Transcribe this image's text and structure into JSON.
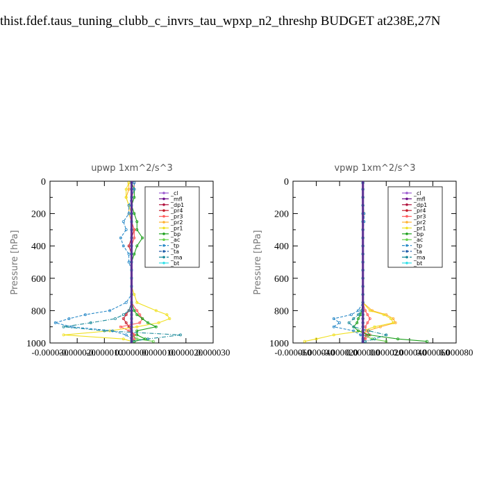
{
  "title": "thist.fdef.taus_tuning_clubb_c_invrs_tau_wpxp_n2_threshp  BUDGET at238E,27N",
  "series_meta": [
    {
      "name": "_cl",
      "color": "#9b59d0",
      "dash": ""
    },
    {
      "name": "_mfl",
      "color": "#6a0d8a",
      "dash": ""
    },
    {
      "name": "_dp1",
      "color": "#b0103c",
      "dash": ""
    },
    {
      "name": "_pr4",
      "color": "#c41f2e",
      "dash": ""
    },
    {
      "name": "_pr3",
      "color": "#ff5a5a",
      "dash": ""
    },
    {
      "name": "_pr2",
      "color": "#ffb030",
      "dash": ""
    },
    {
      "name": "_pr1",
      "color": "#f0e020",
      "dash": ""
    },
    {
      "name": "_bp",
      "color": "#1ca01c",
      "dash": ""
    },
    {
      "name": "_ac",
      "color": "#66d04a",
      "dash": ""
    },
    {
      "name": "_tp",
      "color": "#2a8ac8",
      "dash": "4,2"
    },
    {
      "name": "_ta",
      "color": "#1e5aa8",
      "dash": "4,2"
    },
    {
      "name": "_ma",
      "color": "#1a8a9a",
      "dash": "6,2,1,2"
    },
    {
      "name": "_bt",
      "color": "#30e0e8",
      "dash": ""
    }
  ],
  "chart_data": [
    {
      "type": "line",
      "title": "upwp   1xm^2/s^3",
      "ylabel": "Pressure [hPa]",
      "xlim": [
        -3e-05,
        3e-05
      ],
      "ylim": [
        1000,
        0
      ],
      "yticks": [
        0,
        200,
        400,
        600,
        800,
        1000
      ],
      "xticks": [
        -3e-05,
        -2e-05,
        -1e-05,
        0,
        1e-05,
        2e-05,
        3e-05
      ],
      "xtick_labels": [
        "-0.000030",
        "-0.000020",
        "-0.000010",
        "0.000000",
        "0.000010",
        "0.000020",
        "0.000030"
      ],
      "legend_position": "top-right",
      "y": [
        10,
        50,
        100,
        150,
        200,
        250,
        300,
        350,
        400,
        450,
        500,
        550,
        600,
        650,
        700,
        750,
        800,
        825,
        850,
        875,
        900,
        925,
        950,
        975,
        990
      ],
      "series": [
        {
          "name": "_cl",
          "values": [
            0,
            0,
            0,
            0,
            0,
            0,
            0,
            0,
            0,
            0,
            0,
            0,
            0,
            0,
            0,
            0,
            0,
            0,
            0,
            0,
            0,
            0,
            0,
            0,
            0
          ]
        },
        {
          "name": "_mfl",
          "values": [
            0,
            0,
            0,
            0,
            0,
            0,
            0,
            0,
            0,
            0,
            0,
            0,
            0,
            0,
            0,
            0,
            0,
            0,
            0,
            0,
            0,
            0,
            0,
            0,
            0
          ]
        },
        {
          "name": "_dp1",
          "values": [
            0,
            0,
            0,
            0,
            0,
            0,
            0,
            0,
            0,
            0,
            0,
            0,
            0,
            0,
            0,
            0,
            0,
            0,
            0,
            0,
            0,
            0,
            0,
            0,
            0
          ]
        },
        {
          "name": "_pr4",
          "values": [
            0,
            0,
            0,
            0,
            0,
            0,
            1e-06,
            0,
            -1e-06,
            0,
            0,
            0,
            0,
            0,
            0,
            0,
            -1e-06,
            -2e-06,
            -3e-06,
            -2e-06,
            -1e-06,
            0,
            1e-06,
            0,
            0
          ]
        },
        {
          "name": "_pr3",
          "values": [
            1e-06,
            1e-06,
            0,
            0,
            0,
            0,
            1e-06,
            1e-06,
            0,
            0,
            0,
            0,
            0,
            0,
            0,
            0,
            2e-06,
            3e-06,
            4e-06,
            3e-06,
            -4e-06,
            -1e-06,
            1e-06,
            1e-06,
            0
          ]
        },
        {
          "name": "_pr2",
          "values": [
            -1e-06,
            -1e-06,
            -2e-06,
            -1e-06,
            -1e-06,
            0,
            0,
            0,
            0,
            0,
            0,
            0,
            0,
            0,
            0,
            0,
            0,
            0,
            0,
            0,
            0,
            0,
            0,
            0,
            0
          ]
        },
        {
          "name": "_pr1",
          "values": [
            -1e-06,
            -2e-06,
            -2e-06,
            -1e-06,
            0,
            0,
            0,
            0,
            0,
            0,
            0,
            0,
            0,
            0,
            1e-06,
            2e-06,
            9e-06,
            1.3e-05,
            1.4e-05,
            1e-05,
            2e-06,
            -8e-06,
            -2.5e-05,
            -3e-06,
            0
          ]
        },
        {
          "name": "_bp",
          "values": [
            0,
            1e-06,
            1e-06,
            0,
            1e-06,
            2e-06,
            2e-06,
            4e-06,
            2e-06,
            1e-06,
            0,
            0,
            0,
            0,
            0,
            0,
            1e-06,
            2e-06,
            4e-06,
            6e-06,
            9e-06,
            2e-06,
            2e-06,
            5e-06,
            1e-06
          ]
        },
        {
          "name": "_ac",
          "values": [
            0,
            0,
            0,
            0,
            0,
            0,
            0,
            0,
            0,
            0,
            0,
            0,
            0,
            0,
            0,
            0,
            0,
            0,
            0,
            0,
            0,
            0,
            0,
            2e-06,
            8e-06
          ]
        },
        {
          "name": "_tp",
          "values": [
            1e-06,
            1e-06,
            0,
            -1e-06,
            -1e-06,
            -3e-06,
            -2e-06,
            -4e-06,
            -3e-06,
            -1e-06,
            -1e-06,
            0,
            0,
            0,
            0,
            -2e-06,
            -8e-06,
            -1.7e-05,
            -2.3e-05,
            -2.8e-05,
            -2.2e-05,
            -7e-06,
            -2e-06,
            0,
            0
          ]
        },
        {
          "name": "_ta",
          "values": [
            0,
            0,
            0,
            0,
            0,
            0,
            0,
            0,
            0,
            0,
            0,
            0,
            0,
            0,
            0,
            0,
            0,
            0,
            0,
            0,
            0,
            0,
            0,
            0,
            0
          ]
        },
        {
          "name": "_ma",
          "values": [
            0,
            0,
            0,
            0,
            0,
            0,
            0,
            0,
            0,
            0,
            0,
            0,
            0,
            0,
            0,
            0,
            -1e-06,
            -3e-06,
            -6e-06,
            -1.5e-05,
            -2.5e-05,
            -1e-05,
            1.8e-05,
            6e-06,
            0
          ]
        },
        {
          "name": "_bt",
          "values": [
            0,
            0,
            0,
            0,
            0,
            0,
            0,
            0,
            0,
            0,
            0,
            0,
            0,
            0,
            0,
            0,
            0,
            0,
            0,
            0,
            0,
            0,
            0,
            0,
            0
          ]
        }
      ]
    },
    {
      "type": "line",
      "title": "vpwp   1xm^2/s^3",
      "ylabel": "Pressure [hPa]",
      "xlim": [
        -6e-05,
        8e-05
      ],
      "ylim": [
        1000,
        0
      ],
      "yticks": [
        0,
        200,
        400,
        600,
        800,
        1000
      ],
      "xticks": [
        -6e-05,
        -4e-05,
        -2e-05,
        0,
        2e-05,
        4e-05,
        6e-05,
        8e-05
      ],
      "xtick_labels": [
        "-0.000060",
        "-0.000040",
        "-0.000020",
        "0.000000",
        "0.000020",
        "0.000040",
        "0.000060",
        "0.000080"
      ],
      "legend_position": "top-right",
      "y": [
        10,
        50,
        100,
        150,
        200,
        250,
        300,
        350,
        400,
        450,
        500,
        550,
        600,
        650,
        700,
        750,
        800,
        825,
        850,
        875,
        900,
        925,
        950,
        975,
        990
      ],
      "series": [
        {
          "name": "_cl",
          "values": [
            0,
            0,
            0,
            0,
            0,
            0,
            0,
            0,
            0,
            0,
            0,
            0,
            0,
            0,
            0,
            0,
            0,
            0,
            0,
            0,
            0,
            0,
            0,
            0,
            0
          ]
        },
        {
          "name": "_mfl",
          "values": [
            0,
            0,
            0,
            0,
            0,
            0,
            0,
            0,
            0,
            0,
            0,
            0,
            0,
            0,
            0,
            0,
            0,
            0,
            0,
            0,
            0,
            0,
            0,
            0,
            0
          ]
        },
        {
          "name": "_dp1",
          "values": [
            0,
            0,
            0,
            0,
            0,
            0,
            0,
            0,
            0,
            0,
            0,
            0,
            0,
            0,
            0,
            0,
            0,
            0,
            0,
            0,
            0,
            0,
            0,
            0,
            0
          ]
        },
        {
          "name": "_pr4",
          "values": [
            0,
            0,
            0,
            0,
            0,
            0,
            0,
            0,
            0,
            0,
            0,
            0,
            0,
            0,
            0,
            0,
            0,
            0,
            0,
            0,
            0,
            0,
            3e-06,
            1e-06,
            0
          ]
        },
        {
          "name": "_pr3",
          "values": [
            0,
            0,
            0,
            0,
            0,
            0,
            0,
            0,
            0,
            0,
            0,
            0,
            0,
            0,
            0,
            0,
            2e-06,
            4e-06,
            6e-06,
            4e-06,
            2e-06,
            3e-06,
            6e-06,
            2e-06,
            0
          ]
        },
        {
          "name": "_pr2",
          "values": [
            0,
            0,
            0,
            0,
            1e-06,
            0,
            0,
            0,
            0,
            0,
            0,
            0,
            0,
            0,
            0,
            0,
            8e-06,
            2e-05,
            2.6e-05,
            2.8e-05,
            1.5e-05,
            4e-06,
            0,
            0,
            0
          ]
        },
        {
          "name": "_pr1",
          "values": [
            0,
            0,
            0,
            0,
            0,
            0,
            0,
            0,
            0,
            0,
            0,
            0,
            0,
            0,
            0,
            0,
            6e-06,
            1.8e-05,
            2.4e-05,
            2.6e-05,
            1e-05,
            0,
            -2.5e-05,
            -4e-05,
            -5e-05
          ]
        },
        {
          "name": "_bp",
          "values": [
            0,
            0,
            0,
            0,
            0,
            0,
            0,
            0,
            0,
            0,
            0,
            0,
            0,
            0,
            0,
            0,
            -1e-06,
            -2e-06,
            -4e-06,
            -5e-06,
            -8e-06,
            -4e-06,
            5e-06,
            3e-05,
            5.5e-05
          ]
        },
        {
          "name": "_ac",
          "values": [
            0,
            0,
            0,
            0,
            0,
            0,
            0,
            0,
            0,
            0,
            0,
            0,
            0,
            0,
            0,
            0,
            0,
            0,
            0,
            0,
            0,
            0,
            0,
            8e-06,
            2e-05
          ]
        },
        {
          "name": "_tp",
          "values": [
            0,
            0,
            0,
            0,
            1e-06,
            1e-06,
            0,
            0,
            0,
            0,
            0,
            0,
            0,
            0,
            0,
            0,
            -4e-06,
            -1e-05,
            -2.5e-05,
            -2e-05,
            -2.5e-05,
            -8e-06,
            -2e-06,
            0,
            0
          ]
        },
        {
          "name": "_ta",
          "values": [
            0,
            0,
            0,
            0,
            0,
            0,
            0,
            0,
            0,
            0,
            0,
            0,
            0,
            0,
            0,
            0,
            0,
            0,
            0,
            0,
            0,
            0,
            0,
            0,
            0
          ]
        },
        {
          "name": "_ma",
          "values": [
            0,
            0,
            0,
            0,
            0,
            0,
            0,
            0,
            0,
            0,
            0,
            0,
            0,
            0,
            0,
            0,
            -1e-06,
            -4e-06,
            -8e-06,
            -1.2e-05,
            -8e-06,
            5e-06,
            2e-05,
            1e-05,
            2e-06
          ]
        },
        {
          "name": "_bt",
          "values": [
            0,
            0,
            0,
            0,
            0,
            0,
            0,
            0,
            0,
            0,
            0,
            0,
            0,
            0,
            0,
            0,
            0,
            0,
            0,
            0,
            0,
            0,
            0,
            0,
            0
          ]
        }
      ]
    }
  ]
}
